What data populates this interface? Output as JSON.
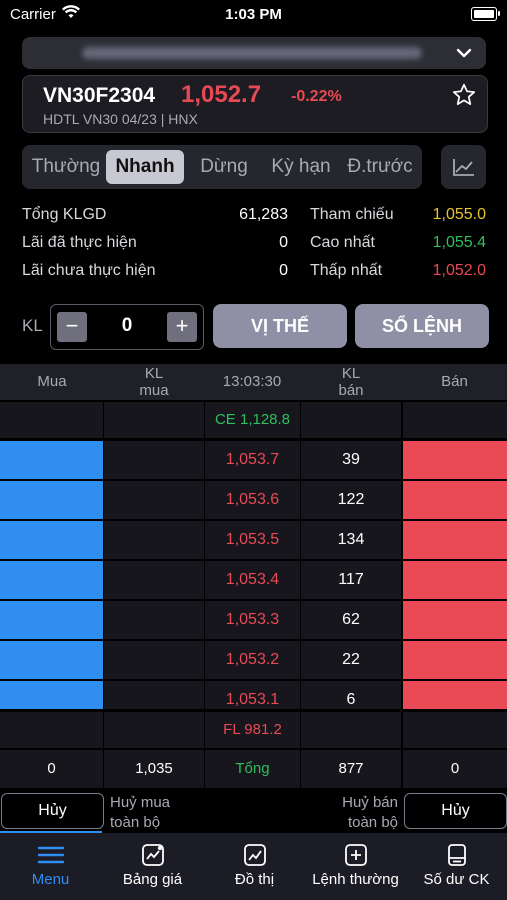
{
  "status": {
    "carrier": "Carrier",
    "time": "1:03 PM"
  },
  "header": {
    "symbol": "VN30F2304",
    "price": "1,052.7",
    "change": "-0.22%",
    "subtitle": "HDTL VN30 04/23 | HNX"
  },
  "tabs": [
    {
      "label": "Thường",
      "active": false
    },
    {
      "label": "Nhanh",
      "active": true
    },
    {
      "label": "Dừng",
      "active": false
    },
    {
      "label": "Kỳ hạn",
      "active": false
    },
    {
      "label": "Đ.trước",
      "active": false
    }
  ],
  "stats": {
    "total_volume_label": "Tổng KLGD",
    "total_volume": "61,283",
    "realized_pl_label": "Lãi đã thực hiện",
    "realized_pl": "0",
    "unrealized_pl_label": "Lãi chưa thực hiện",
    "unrealized_pl": "0",
    "ref_label": "Tham chiếu",
    "ref": "1,055.0",
    "high_label": "Cao nhất",
    "high": "1,055.4",
    "low_label": "Thấp nhất",
    "low": "1,052.0"
  },
  "order": {
    "qty_label": "KL",
    "qty_value": "0",
    "position_button": "VỊ THẾ",
    "orderbook_button": "SỔ LỆNH"
  },
  "orderbook": {
    "headers": {
      "buy": "Mua",
      "buy_qty": "KL\nmua",
      "time": "13:03:30",
      "sell_qty": "KL\nbán",
      "sell": "Bán"
    },
    "ceiling": "CE 1,128.8",
    "floor": "FL 981.2",
    "rows": [
      {
        "price": "1,053.7",
        "sell_qty": "39"
      },
      {
        "price": "1,053.6",
        "sell_qty": "122"
      },
      {
        "price": "1,053.5",
        "sell_qty": "134"
      },
      {
        "price": "1,053.4",
        "sell_qty": "117"
      },
      {
        "price": "1,053.3",
        "sell_qty": "62"
      },
      {
        "price": "1,053.2",
        "sell_qty": "22"
      },
      {
        "price": "1,053.1",
        "sell_qty": "6"
      }
    ],
    "totals": {
      "buy": "0",
      "buy_qty": "1,035",
      "label": "Tổng",
      "sell_qty": "877",
      "sell": "0"
    }
  },
  "cancel": {
    "cancel_left": "Hủy",
    "cancel_all_buy": "Huỷ mua\ntoàn bộ",
    "cancel_all_sell": "Huỷ bán\ntoàn bộ",
    "cancel_right": "Hủy"
  },
  "nav": [
    {
      "label": "Menu",
      "icon": "menu-icon",
      "active": true
    },
    {
      "label": "Bảng giá",
      "icon": "price-board-icon",
      "active": false
    },
    {
      "label": "Đồ thị",
      "icon": "chart-icon",
      "active": false
    },
    {
      "label": "Lệnh thường",
      "icon": "plus-square-icon",
      "active": false
    },
    {
      "label": "Số dư CK",
      "icon": "wallet-icon",
      "active": false
    }
  ],
  "colors": {
    "up": "#2fbf5f",
    "down": "#e84a55",
    "ref": "#e7c52a",
    "buy": "#2f8ef0",
    "sell": "#ea4a56"
  }
}
